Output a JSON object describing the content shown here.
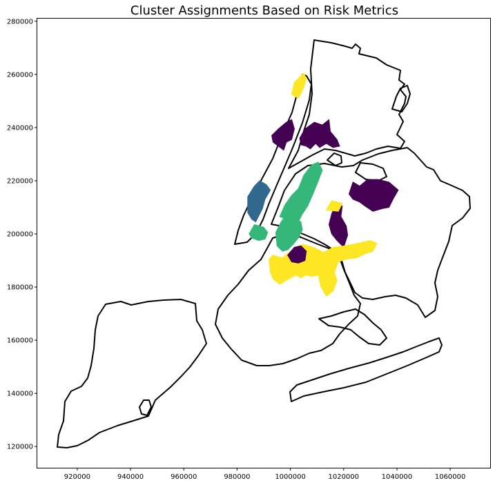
{
  "chart_data": {
    "type": "map",
    "title": "Cluster Assignments Based on Risk Metrics",
    "xlabel": "",
    "ylabel": "",
    "xlim": [
      905000,
      1075000
    ],
    "ylim": [
      112000,
      281000
    ],
    "xticks": [
      920000,
      940000,
      960000,
      980000,
      1000000,
      1020000,
      1040000,
      1060000
    ],
    "yticks": [
      120000,
      140000,
      160000,
      180000,
      200000,
      220000,
      240000,
      260000,
      280000
    ],
    "xtick_labels": [
      "920000",
      "940000",
      "960000",
      "980000",
      "1000000",
      "1020000",
      "1040000",
      "1060000"
    ],
    "ytick_labels": [
      "120000",
      "140000",
      "160000",
      "180000",
      "200000",
      "220000",
      "240000",
      "260000",
      "280000"
    ],
    "grid": false,
    "legend": "none",
    "cluster_colors": {
      "cluster-0": "#440154",
      "cluster-1": "#31688e",
      "cluster-2": "#35b779",
      "cluster-3": "#fde725"
    },
    "regions": [
      {
        "name": "north-manhattan",
        "cluster": "cluster-3",
        "color": "#fde725",
        "points": [
          [
            1001500,
            257000
          ],
          [
            1003500,
            259000
          ],
          [
            1005000,
            260500
          ],
          [
            1006000,
            258500
          ],
          [
            1005000,
            255000
          ],
          [
            1003000,
            251000
          ],
          [
            1000500,
            252500
          ]
        ]
      },
      {
        "name": "west-bronx-a",
        "cluster": "cluster-0",
        "color": "#440154",
        "points": [
          [
            993000,
            237000
          ],
          [
            995500,
            239500
          ],
          [
            998500,
            242000
          ],
          [
            1000500,
            243000
          ],
          [
            1001500,
            239500
          ],
          [
            1000500,
            235500
          ],
          [
            998500,
            234500
          ],
          [
            997500,
            231500
          ],
          [
            995500,
            233000
          ],
          [
            993500,
            234500
          ]
        ]
      },
      {
        "name": "central-bronx",
        "cluster": "cluster-0",
        "color": "#440154",
        "points": [
          [
            1003500,
            236000
          ],
          [
            1005500,
            239500
          ],
          [
            1009000,
            242000
          ],
          [
            1012000,
            241000
          ],
          [
            1014500,
            243000
          ],
          [
            1015000,
            238500
          ],
          [
            1017500,
            235500
          ],
          [
            1018500,
            233000
          ],
          [
            1016000,
            232500
          ],
          [
            1013500,
            234000
          ],
          [
            1011000,
            232500
          ],
          [
            1009500,
            234000
          ],
          [
            1007500,
            232000
          ],
          [
            1006000,
            233000
          ],
          [
            1004000,
            233500
          ]
        ]
      },
      {
        "name": "west-manhattan",
        "cluster": "cluster-1",
        "color": "#31688e",
        "points": [
          [
            984000,
            214000
          ],
          [
            986500,
            218000
          ],
          [
            988500,
            220000
          ],
          [
            991000,
            218500
          ],
          [
            992500,
            216500
          ],
          [
            990500,
            213000
          ],
          [
            989500,
            209500
          ],
          [
            988000,
            206500
          ],
          [
            987000,
            204500
          ],
          [
            985500,
            205500
          ],
          [
            984000,
            208000
          ]
        ]
      },
      {
        "name": "lower-west-manhattan",
        "cluster": "cluster-2",
        "color": "#35b779",
        "points": [
          [
            984500,
            200000
          ],
          [
            986500,
            203500
          ],
          [
            990000,
            202500
          ],
          [
            991500,
            200500
          ],
          [
            990500,
            198000
          ],
          [
            988000,
            197500
          ],
          [
            985500,
            198500
          ]
        ]
      },
      {
        "name": "north-queens",
        "cluster": "cluster-2",
        "color": "#35b779",
        "points": [
          [
            996000,
            206500
          ],
          [
            998000,
            211000
          ],
          [
            1000500,
            214500
          ],
          [
            1003000,
            217000
          ],
          [
            1005000,
            222000
          ],
          [
            1008000,
            226000
          ],
          [
            1010500,
            227000
          ],
          [
            1012000,
            224000
          ],
          [
            1010500,
            220000
          ],
          [
            1008500,
            215000
          ],
          [
            1006500,
            210500
          ],
          [
            1004500,
            207500
          ],
          [
            1002500,
            203500
          ],
          [
            1000500,
            204500
          ],
          [
            998500,
            205500
          ]
        ]
      },
      {
        "name": "central-queens-green",
        "cluster": "cluster-2",
        "color": "#35b779",
        "points": [
          [
            994500,
            200500
          ],
          [
            996500,
            204500
          ],
          [
            998000,
            206500
          ],
          [
            1001500,
            206000
          ],
          [
            1004000,
            204500
          ],
          [
            1004500,
            201500
          ],
          [
            1003000,
            198500
          ],
          [
            1001000,
            196000
          ],
          [
            999000,
            194000
          ],
          [
            997000,
            193500
          ],
          [
            995000,
            195500
          ]
        ]
      },
      {
        "name": "east-queens",
        "cluster": "cluster-0",
        "color": "#440154",
        "points": [
          [
            1022000,
            215000
          ],
          [
            1023500,
            219500
          ],
          [
            1026000,
            218000
          ],
          [
            1029000,
            220500
          ],
          [
            1033000,
            220500
          ],
          [
            1037000,
            219500
          ],
          [
            1040500,
            216500
          ],
          [
            1038500,
            213000
          ],
          [
            1037000,
            210000
          ],
          [
            1034500,
            209500
          ],
          [
            1031000,
            208500
          ],
          [
            1028000,
            210500
          ],
          [
            1026000,
            212000
          ],
          [
            1023500,
            213000
          ]
        ]
      },
      {
        "name": "mid-queens",
        "cluster": "cluster-0",
        "color": "#440154",
        "points": [
          [
            1015500,
            207500
          ],
          [
            1017000,
            211000
          ],
          [
            1019500,
            210500
          ],
          [
            1019000,
            206500
          ],
          [
            1021000,
            203000
          ],
          [
            1021500,
            199500
          ],
          [
            1020000,
            195000
          ],
          [
            1017500,
            197500
          ],
          [
            1015500,
            200000
          ],
          [
            1014500,
            203500
          ]
        ]
      },
      {
        "name": "north-queens-strip",
        "cluster": "cluster-3",
        "color": "#fde725",
        "points": [
          [
            1013500,
            209000
          ],
          [
            1015500,
            212500
          ],
          [
            1019500,
            211500
          ],
          [
            1018000,
            208500
          ]
        ]
      },
      {
        "name": "brooklyn-north",
        "cluster": "cluster-3",
        "color": "#fde725",
        "points": [
          [
            992000,
            190500
          ],
          [
            993500,
            192000
          ],
          [
            997000,
            191000
          ],
          [
            1000000,
            193500
          ],
          [
            1003000,
            195500
          ],
          [
            1005000,
            196000
          ],
          [
            1008500,
            195000
          ],
          [
            1012500,
            193000
          ],
          [
            1016000,
            195000
          ],
          [
            1020500,
            195500
          ],
          [
            1025500,
            196500
          ],
          [
            1030000,
            197500
          ],
          [
            1032500,
            196500
          ],
          [
            1031000,
            193500
          ],
          [
            1028000,
            192500
          ],
          [
            1025000,
            191000
          ],
          [
            1021000,
            190500
          ],
          [
            1018000,
            189500
          ],
          [
            1016500,
            185500
          ],
          [
            1017500,
            182500
          ],
          [
            1016000,
            178500
          ],
          [
            1013500,
            176500
          ],
          [
            1011500,
            180000
          ],
          [
            1010500,
            184500
          ],
          [
            1008000,
            184000
          ],
          [
            1006000,
            184500
          ],
          [
            1004000,
            183500
          ],
          [
            1002000,
            184500
          ],
          [
            998500,
            182500
          ],
          [
            996000,
            181000
          ],
          [
            993500,
            183000
          ],
          [
            992500,
            185500
          ]
        ]
      },
      {
        "name": "brooklyn-purple",
        "cluster": "cluster-0",
        "color": "#440154",
        "points": [
          [
            999000,
            192000
          ],
          [
            1001500,
            195000
          ],
          [
            1004000,
            195500
          ],
          [
            1006000,
            193500
          ],
          [
            1005500,
            190000
          ],
          [
            1003000,
            189000
          ],
          [
            1000500,
            189500
          ]
        ]
      }
    ]
  }
}
